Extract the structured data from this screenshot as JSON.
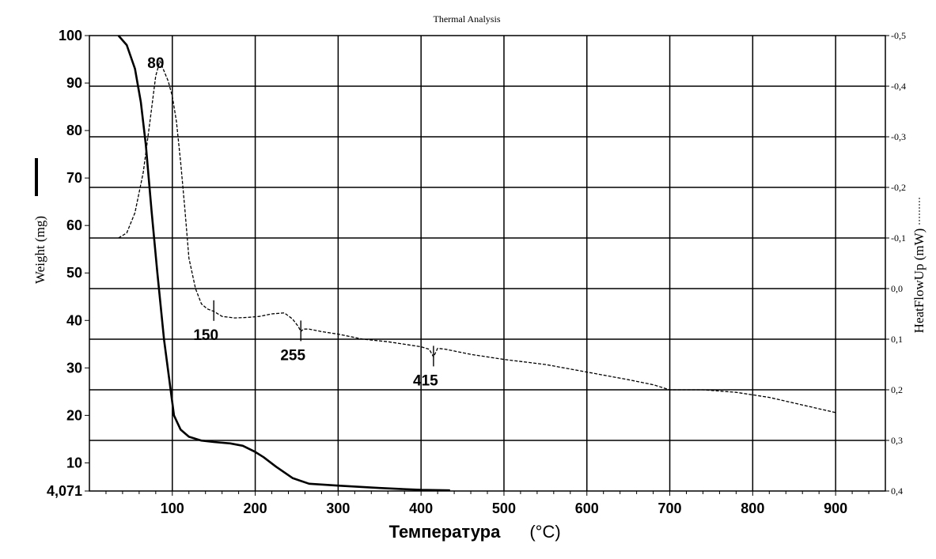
{
  "chart_data": {
    "type": "line",
    "title": "Thermal Analysis",
    "xlabel": "Температура",
    "xlabel_unit": "(°C)",
    "ylabel_left": "Weight (mg)",
    "ylabel_right": "HeatFlowUp (mW)",
    "xlim": [
      0,
      960
    ],
    "ylim_left": [
      4.071,
      100
    ],
    "ylim_right": [
      0.4,
      -0.5
    ],
    "x_ticks": [
      "100",
      "200",
      "300",
      "400",
      "500",
      "600",
      "700",
      "800",
      "900"
    ],
    "y_left_ticks": [
      "100",
      "90",
      "80",
      "70",
      "60",
      "50",
      "40",
      "30",
      "20",
      "10",
      "4,071"
    ],
    "y_right_ticks": [
      "-0,5",
      "-0,4",
      "-0,3",
      "-0,2",
      "-0,1",
      "0,0",
      "0,1",
      "0,2",
      "0,3",
      "0,4"
    ],
    "grid": true,
    "annotations": [
      {
        "text": "80",
        "x": 80
      },
      {
        "text": "150",
        "x": 150
      },
      {
        "text": "255",
        "x": 255
      },
      {
        "text": "415",
        "x": 415
      }
    ],
    "series": [
      {
        "axis": "left",
        "style": "solid",
        "x": [
          35,
          45,
          55,
          62,
          68,
          75,
          82,
          90,
          96,
          102,
          110,
          120,
          135,
          150,
          170,
          185,
          200,
          210,
          225,
          245,
          265,
          300,
          350,
          400,
          435
        ],
        "y": [
          100,
          98,
          93,
          86,
          77,
          63,
          50,
          36,
          28,
          20,
          17,
          15.5,
          14.7,
          14.4,
          14.1,
          13.6,
          12.3,
          11.2,
          9.2,
          6.8,
          5.6,
          5.2,
          4.7,
          4.3,
          4.2
        ]
      },
      {
        "axis": "right",
        "style": "dashed",
        "x": [
          35,
          45,
          55,
          65,
          73,
          80,
          85,
          90,
          95,
          100,
          105,
          110,
          115,
          120,
          128,
          135,
          142,
          150,
          160,
          175,
          190,
          205,
          220,
          235,
          245,
          252,
          255,
          258,
          265,
          280,
          300,
          330,
          360,
          400,
          410,
          415,
          420,
          430,
          460,
          500,
          550,
          600,
          650,
          680,
          700,
          740,
          780,
          820,
          860,
          900
        ],
        "y": [
          -0.1,
          -0.11,
          -0.15,
          -0.23,
          -0.33,
          -0.42,
          -0.45,
          -0.43,
          -0.41,
          -0.38,
          -0.33,
          -0.25,
          -0.16,
          -0.06,
          0.0,
          0.03,
          0.04,
          0.045,
          0.055,
          0.058,
          0.057,
          0.055,
          0.05,
          0.048,
          0.06,
          0.075,
          0.085,
          0.08,
          0.08,
          0.085,
          0.09,
          0.1,
          0.105,
          0.115,
          0.12,
          0.135,
          0.118,
          0.12,
          0.13,
          0.14,
          0.15,
          0.165,
          0.18,
          0.19,
          0.2,
          0.2,
          0.205,
          0.215,
          0.23,
          0.245
        ]
      }
    ]
  }
}
